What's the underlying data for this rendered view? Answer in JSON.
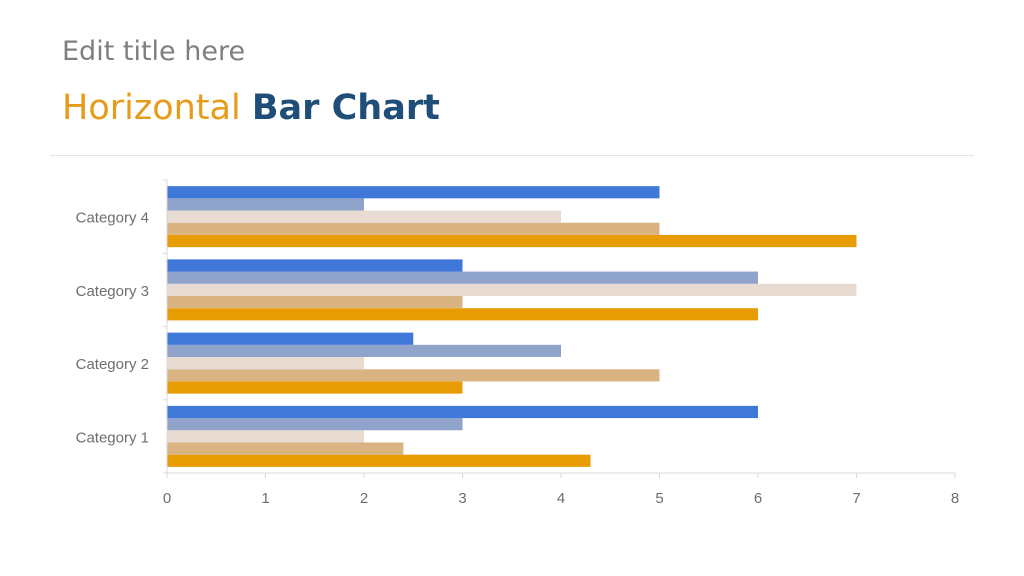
{
  "header": {
    "subtitle": "Edit title here",
    "title_part_1": "Horizontal",
    "title_part_2": "Bar Chart"
  },
  "colors": {
    "subtitle": "#7f7f7f",
    "title_accent": "#e79b1a",
    "title_strong": "#1f4e79",
    "axis": "#d9d9d9",
    "tick_text": "#6e6e6e"
  },
  "chart_data": {
    "type": "bar",
    "orientation": "horizontal",
    "categories": [
      "Category 1",
      "Category 2",
      "Category 3",
      "Category 4"
    ],
    "xlim": [
      0,
      8
    ],
    "xticks": [
      0,
      1,
      2,
      3,
      4,
      5,
      6,
      7,
      8
    ],
    "grid": false,
    "legend": "none",
    "series": [
      {
        "color": "#e89c04",
        "values": [
          4.3,
          3,
          6,
          7
        ]
      },
      {
        "color": "#d9b382",
        "values": [
          2.4,
          5,
          3,
          5
        ]
      },
      {
        "color": "#e8dcd2",
        "values": [
          2,
          2,
          7,
          4
        ]
      },
      {
        "color": "#8fa3cb",
        "values": [
          3,
          4,
          6,
          2
        ]
      },
      {
        "color": "#3f78d9",
        "values": [
          6,
          2.5,
          3,
          5
        ]
      }
    ]
  }
}
